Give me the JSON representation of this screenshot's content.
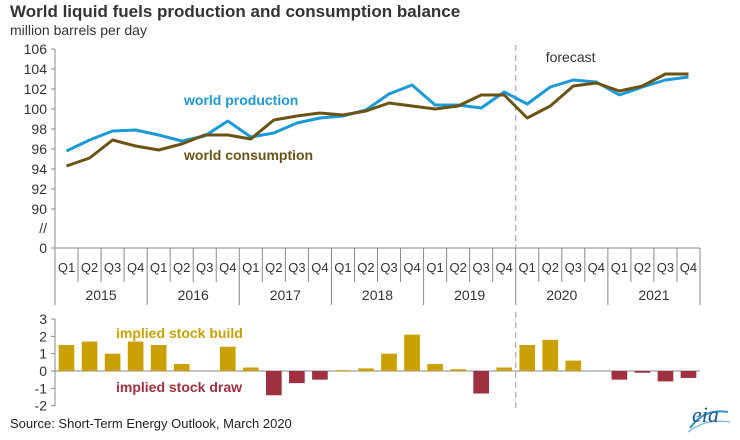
{
  "header": {
    "title": "World liquid fuels production and consumption balance",
    "subtitle": "million barrels per day"
  },
  "footer": {
    "source": "Source: Short-Term Energy Outlook, March 2020",
    "logo": "eia"
  },
  "colors": {
    "production": "#1b9ad6",
    "consumption": "#6b5314",
    "build": "#c9a000",
    "draw": "#a03040",
    "divider": "#aaaaaa"
  },
  "chart_data": [
    {
      "type": "line",
      "title": "World liquid fuels production and consumption balance",
      "ylabel": "million barrels per day",
      "ylim": [
        88,
        106
      ],
      "y_ticks": [
        "106",
        "104",
        "102",
        "100",
        "98",
        "96",
        "94",
        "92",
        "90"
      ],
      "axis_break_label": "//",
      "zero_label": "0",
      "categories": [
        "Q1",
        "Q2",
        "Q3",
        "Q4",
        "Q1",
        "Q2",
        "Q3",
        "Q4",
        "Q1",
        "Q2",
        "Q3",
        "Q4",
        "Q1",
        "Q2",
        "Q3",
        "Q4",
        "Q1",
        "Q2",
        "Q3",
        "Q4",
        "Q1",
        "Q2",
        "Q3",
        "Q4",
        "Q1",
        "Q2",
        "Q3",
        "Q4"
      ],
      "years": [
        "2015",
        "2016",
        "2017",
        "2018",
        "2019",
        "2020",
        "2021"
      ],
      "forecast_label": "forecast",
      "forecast_start_index": 20,
      "series": [
        {
          "name": "world production",
          "values": [
            95.8,
            96.9,
            97.8,
            97.9,
            97.4,
            96.8,
            97.3,
            98.8,
            97.2,
            97.6,
            98.6,
            99.1,
            99.3,
            99.9,
            101.5,
            102.4,
            100.4,
            100.4,
            100.1,
            101.7,
            100.5,
            102.2,
            102.9,
            102.7,
            101.4,
            102.2,
            102.9,
            103.2
          ]
        },
        {
          "name": "world consumption",
          "values": [
            94.3,
            95.1,
            96.9,
            96.3,
            95.9,
            96.5,
            97.4,
            97.4,
            97.0,
            98.9,
            99.3,
            99.6,
            99.4,
            99.8,
            100.6,
            100.3,
            100.0,
            100.3,
            101.4,
            101.4,
            99.1,
            100.3,
            102.3,
            102.6,
            101.8,
            102.3,
            103.5,
            103.5
          ]
        }
      ]
    },
    {
      "type": "bar",
      "ylim": [
        -2,
        3
      ],
      "y_ticks": [
        "3",
        "2",
        "1",
        "0",
        "-1",
        "-2"
      ],
      "build_label": "implied stock  build",
      "draw_label": "implied stock draw",
      "values": [
        1.5,
        1.7,
        1.0,
        1.7,
        1.5,
        0.4,
        0.0,
        1.4,
        0.2,
        -1.4,
        -0.7,
        -0.5,
        0.05,
        0.15,
        1.0,
        2.1,
        0.4,
        0.1,
        -1.3,
        0.2,
        1.5,
        1.8,
        0.6,
        0.0,
        -0.5,
        -0.1,
        -0.6,
        -0.4
      ]
    }
  ]
}
